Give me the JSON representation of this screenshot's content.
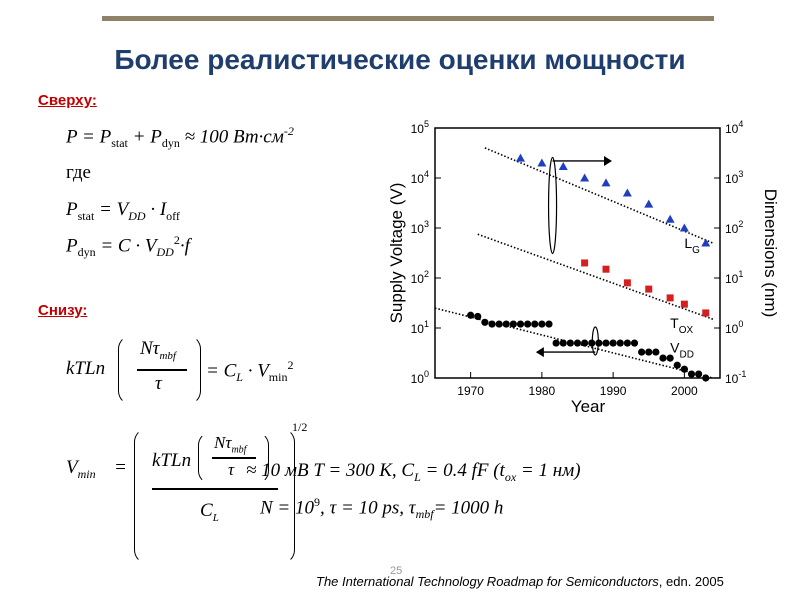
{
  "slide": {
    "title": "Более реалистические оценки мощности",
    "upper_label": "Сверху:",
    "lower_label": "Снизу:",
    "page_number": "25",
    "reference_title": "The International Technology Roadmap for Semiconductors",
    "reference_edition": ", edn. 2005"
  },
  "equations": {
    "power_total": "P = P",
    "power_stat_sub": "stat",
    "power_plus": "+ P",
    "power_dyn_sub": "dyn",
    "power_approx": "≈  100 Вт·см",
    "power_exp": "-2",
    "where_word": "где",
    "pstat_lhs": "P",
    "pstat_sub": "stat",
    "pstat_rhs": "= V",
    "pstat_vdd_sub": "DD",
    "pstat_rhs2": "· I",
    "pstat_ioff_sub": "off",
    "pdyn_lhs": "P",
    "pdyn_sub": "dyn",
    "pdyn_rhs": "= C · V",
    "pdyn_vdd_sub": "DD",
    "pdyn_exp": "2",
    "pdyn_f": "·f",
    "ktln": "kTLn",
    "n_tau": "Nτ",
    "mbf_sub": "mbf",
    "tau": "τ",
    "eq_cl": "= C",
    "cl_sub": "L",
    "vmin_dot": "· V",
    "vmin_sub": "min",
    "vmin_exp": "2",
    "vmin_lhs": "V",
    "vmin_lhs_sub": "min",
    "equals": "=",
    "cl_den": "C",
    "cl_den_sub": "L",
    "half_exp": "1/2",
    "approx_value": "≈  10 мВ   T = 300 K, C",
    "approx_cl_sub": "L",
    "approx_cap": "= 0.4 fF (t",
    "tox_sub": "ox",
    "tox_val": "= 1 нм)",
    "params_line": "N = 10",
    "params_exp": "9",
    "params_rest": ", τ = 10 ps, τ",
    "params_mbf_sub": "mbf",
    "params_end": "= 1000 h"
  },
  "chart_data": {
    "type": "scatter",
    "xlabel": "Year",
    "ylabel": "Supply Voltage (V)",
    "y2label": "Dimensions (nm)",
    "xlim": [
      1965,
      2005
    ],
    "xticks": [
      "1970",
      "1980",
      "1990",
      "2000"
    ],
    "ylim_log10": [
      0,
      5
    ],
    "yticks": [
      "10^0",
      "10^1",
      "10^2",
      "10^3",
      "10^4",
      "10^5"
    ],
    "y2lim_log10": [
      -1,
      4
    ],
    "y2ticks": [
      "10^-1",
      "10^0",
      "10^1",
      "10^2",
      "10^3",
      "10^4"
    ],
    "series": [
      {
        "name": "L_G",
        "marker": "triangle",
        "color": "#1f3fbf",
        "axis": "right",
        "x": [
          1977,
          1980,
          1983,
          1986,
          1989,
          1992,
          1995,
          1998,
          2000,
          2003
        ],
        "y": [
          2500,
          2000,
          1700,
          1000,
          800,
          500,
          300,
          150,
          100,
          50
        ]
      },
      {
        "name": "T_OX",
        "marker": "square",
        "color": "#d42020",
        "axis": "right",
        "x": [
          1986,
          1989,
          1992,
          1995,
          1998,
          2000,
          2003
        ],
        "y": [
          20,
          15,
          8,
          6,
          4,
          3,
          2
        ]
      },
      {
        "name": "V_DD",
        "marker": "circle",
        "color": "#000000",
        "axis": "left",
        "x": [
          1970,
          1971,
          1972,
          1973,
          1974,
          1975,
          1976,
          1977,
          1978,
          1979,
          1980,
          1981,
          1982,
          1983,
          1984,
          1985,
          1986,
          1987,
          1988,
          1989,
          1990,
          1991,
          1992,
          1993,
          1994,
          1995,
          1996,
          1997,
          1998,
          1999,
          2000,
          2001,
          2002,
          2003
        ],
        "y": [
          18,
          17,
          13,
          12,
          12,
          12,
          12,
          12,
          12,
          12,
          12,
          12,
          5,
          5,
          5,
          5,
          5,
          5,
          5,
          5,
          5,
          5,
          5,
          5,
          3.3,
          3.3,
          3.3,
          2.5,
          2.5,
          1.8,
          1.5,
          1.2,
          1.2,
          1.0
        ]
      }
    ],
    "series_labels": [
      {
        "text": "L",
        "sub": "G"
      },
      {
        "text": "T",
        "sub": "OX"
      },
      {
        "text": "V",
        "sub": "DD"
      }
    ]
  }
}
